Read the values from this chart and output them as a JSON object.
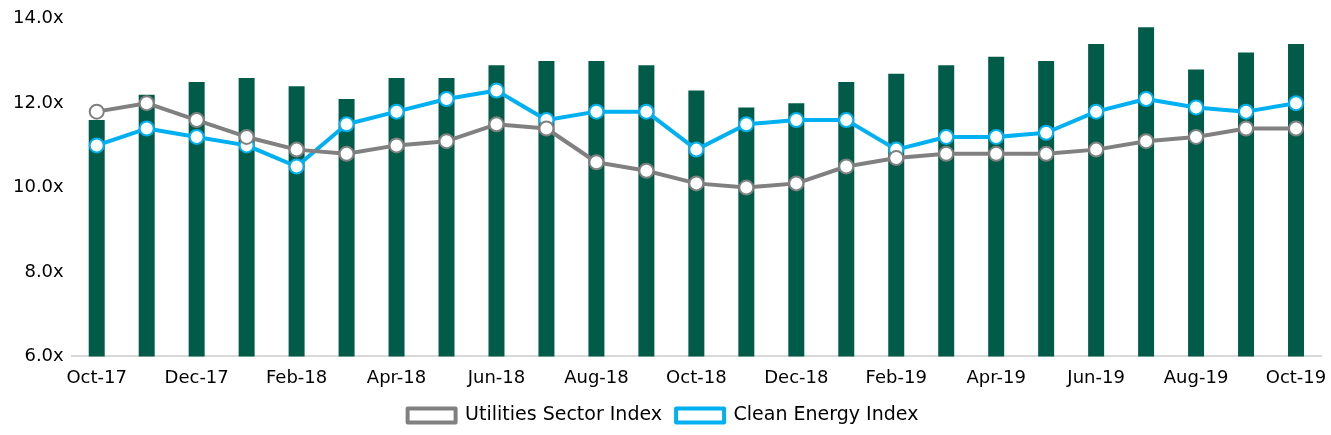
{
  "chart_data": {
    "type": "bar",
    "categories": [
      "Oct-17",
      null,
      "Dec-17",
      null,
      "Feb-18",
      null,
      "Apr-18",
      null,
      "Jun-18",
      null,
      "Aug-18",
      null,
      "Oct-18",
      null,
      "Dec-18",
      null,
      "Feb-19",
      null,
      "Apr-19",
      null,
      "Jun-19",
      null,
      "Aug-19",
      null,
      "Oct-19"
    ],
    "series": [
      {
        "color": "#005c48",
        "values": [
          11.6,
          12.2,
          12.5,
          12.6,
          12.4,
          12.1,
          12.6,
          12.6,
          12.9,
          13.0,
          13.0,
          12.9,
          12.3,
          11.9,
          12.0,
          12.5,
          12.7,
          12.9,
          13.1,
          13.0,
          13.4,
          13.8,
          12.8,
          13.2,
          13.4
        ]
      },
      {
        "type": "line",
        "name": "Utilities Sector Index",
        "color": "#808080",
        "values": [
          11.8,
          12.0,
          11.6,
          11.2,
          10.9,
          10.8,
          11.0,
          11.1,
          11.5,
          11.4,
          10.6,
          10.4,
          10.1,
          10.0,
          10.1,
          10.5,
          10.7,
          10.8,
          10.8,
          10.8,
          10.9,
          11.1,
          11.2,
          11.4,
          11.4
        ]
      },
      {
        "type": "line",
        "name": "Clean Energy Index",
        "color": "#00b0f0",
        "values": [
          11.0,
          11.4,
          11.2,
          11.0,
          10.5,
          11.5,
          11.8,
          12.1,
          12.3,
          11.6,
          11.8,
          11.8,
          10.9,
          11.5,
          11.6,
          11.6,
          10.9,
          11.2,
          11.2,
          11.3,
          11.8,
          12.1,
          11.9,
          11.8,
          12.0
        ]
      }
    ],
    "ylim": [
      6,
      14
    ],
    "yticks": [
      {
        "value": 6,
        "label": "6.0x"
      },
      {
        "value": 8,
        "label": "8.0x"
      },
      {
        "value": 10,
        "label": "10.0x"
      },
      {
        "value": 12,
        "label": "12.0x"
      },
      {
        "value": 14,
        "label": "14.0x"
      }
    ],
    "grid": false,
    "legend": "bottom",
    "marker": "circle",
    "line_style": "solid"
  }
}
